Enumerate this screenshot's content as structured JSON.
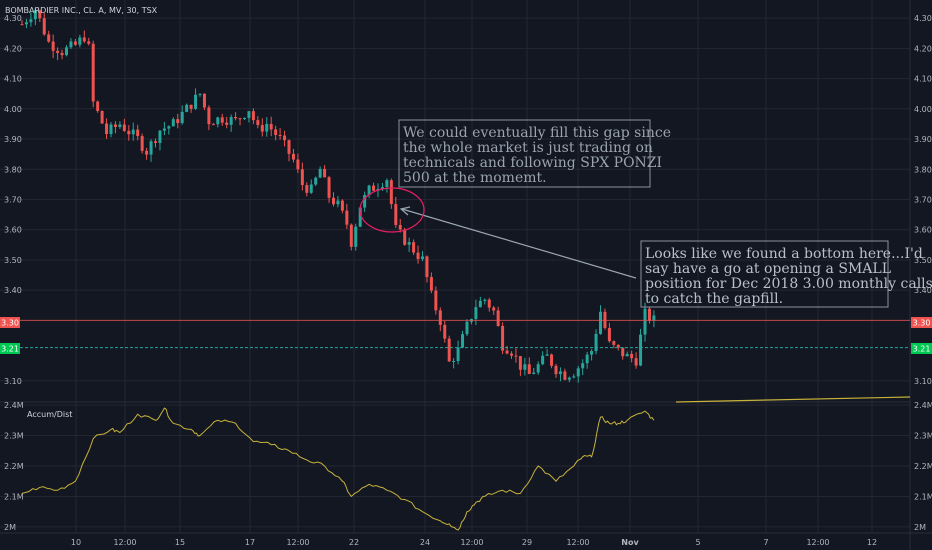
{
  "header": {
    "title": "BOMBARDIER INC., CL. A, MV, 30, TSX"
  },
  "colors": {
    "background": "#131722",
    "grid": "#242733",
    "up": "#26a69a",
    "down": "#ef5350",
    "accum": "#c8b23a",
    "red_line": "#ef5350",
    "green_line": "#26a69a",
    "annotation": "#b0b8c4",
    "circle": "#e91e63"
  },
  "price_badges": {
    "red": "3.30",
    "green": "3.21"
  },
  "annotations": [
    {
      "lines": [
        "We could eventually fill this gap since",
        "the whole market is just trading on",
        "technicals and following SPX PONZI",
        "500 at the momemt."
      ]
    },
    {
      "lines": [
        "Looks like we found a bottom here...I'd",
        "say have a go at opening a SMALL",
        "position for Dec 2018 3.00 monthly calls",
        "to catch the gapfill."
      ]
    }
  ],
  "indicator": {
    "label": "Accum/Dist"
  },
  "chart_data": [
    {
      "type": "candlestick",
      "title": "BOMBARDIER INC., CL. A, MV, 30, TSX",
      "y_ticks": [
        "4.30",
        "4.20",
        "4.10",
        "4.00",
        "3.90",
        "3.80",
        "3.70",
        "3.60",
        "3.50",
        "3.40",
        "3.10"
      ],
      "y_tick_values": [
        4.3,
        4.2,
        4.1,
        4.0,
        3.9,
        3.8,
        3.7,
        3.6,
        3.5,
        3.4,
        3.1
      ],
      "ylim": [
        3.03,
        4.36
      ],
      "x_ticks": [
        "10",
        "12:00",
        "15",
        "17",
        "12:00",
        "22",
        "24",
        "12:00",
        "29",
        "12:00",
        "Nov",
        "5",
        "7",
        "12:00",
        "12"
      ],
      "horizontal_lines": [
        3.3,
        3.21
      ],
      "grid": true,
      "close_path": [
        [
          0,
          4.28
        ],
        [
          3,
          4.33
        ],
        [
          6,
          4.22
        ],
        [
          9,
          4.19
        ],
        [
          12,
          4.21
        ],
        [
          14,
          4.24
        ],
        [
          15,
          4.2
        ],
        [
          16,
          4.02
        ],
        [
          19,
          3.92
        ],
        [
          22,
          3.95
        ],
        [
          26,
          3.9
        ],
        [
          28,
          3.86
        ],
        [
          31,
          3.93
        ],
        [
          34,
          3.95
        ],
        [
          37,
          4.0
        ],
        [
          40,
          4.05
        ],
        [
          42,
          3.96
        ],
        [
          45,
          3.97
        ],
        [
          48,
          3.96
        ],
        [
          51,
          4.0
        ],
        [
          53,
          3.93
        ],
        [
          55,
          3.95
        ],
        [
          58,
          3.9
        ],
        [
          61,
          3.83
        ],
        [
          63,
          3.75
        ],
        [
          65,
          3.73
        ],
        [
          67,
          3.8
        ],
        [
          69,
          3.71
        ],
        [
          71,
          3.68
        ],
        [
          73,
          3.62
        ],
        [
          74,
          3.56
        ],
        [
          76,
          3.68
        ],
        [
          78,
          3.73
        ],
        [
          80,
          3.75
        ],
        [
          82,
          3.77
        ],
        [
          84,
          3.6
        ],
        [
          87,
          3.55
        ],
        [
          90,
          3.5
        ],
        [
          92,
          3.38
        ],
        [
          94,
          3.3
        ],
        [
          96,
          3.16
        ],
        [
          98,
          3.2
        ],
        [
          100,
          3.28
        ],
        [
          102,
          3.35
        ],
        [
          104,
          3.37
        ],
        [
          106,
          3.33
        ],
        [
          108,
          3.22
        ],
        [
          110,
          3.2
        ],
        [
          112,
          3.15
        ],
        [
          114,
          3.12
        ],
        [
          116,
          3.15
        ],
        [
          118,
          3.18
        ],
        [
          120,
          3.14
        ],
        [
          122,
          3.12
        ],
        [
          124,
          3.13
        ],
        [
          126,
          3.16
        ],
        [
          128,
          3.2
        ],
        [
          130,
          3.33
        ],
        [
          132,
          3.22
        ],
        [
          134,
          3.2
        ],
        [
          136,
          3.18
        ],
        [
          138,
          3.17
        ],
        [
          140,
          3.32
        ],
        [
          142,
          3.3
        ]
      ],
      "candle_count": 142
    },
    {
      "type": "line",
      "series_label": "Accum/Dist",
      "y_ticks": [
        "2.4M",
        "2.3M",
        "2.2M",
        "2.1M",
        "2M"
      ],
      "y_tick_values": [
        2.4,
        2.3,
        2.2,
        2.1,
        2.0
      ],
      "ylim": [
        1.98,
        2.41
      ],
      "x": [
        0,
        4,
        8,
        12,
        16,
        20,
        22,
        26,
        30,
        32,
        34,
        38,
        40,
        44,
        48,
        52,
        56,
        60,
        64,
        68,
        72,
        74,
        78,
        82,
        86,
        90,
        94,
        96,
        98,
        100,
        102,
        104,
        108,
        112,
        116,
        120,
        124,
        126,
        128,
        130,
        132,
        134,
        136,
        140,
        142
      ],
      "values": [
        2.11,
        2.13,
        2.12,
        2.15,
        2.29,
        2.32,
        2.31,
        2.37,
        2.35,
        2.39,
        2.34,
        2.32,
        2.3,
        2.35,
        2.34,
        2.28,
        2.27,
        2.25,
        2.22,
        2.2,
        2.15,
        2.1,
        2.14,
        2.12,
        2.09,
        2.05,
        2.02,
        2.01,
        1.99,
        2.05,
        2.08,
        2.1,
        2.12,
        2.11,
        2.2,
        2.15,
        2.2,
        2.23,
        2.23,
        2.36,
        2.34,
        2.34,
        2.35,
        2.38,
        2.35
      ]
    }
  ]
}
